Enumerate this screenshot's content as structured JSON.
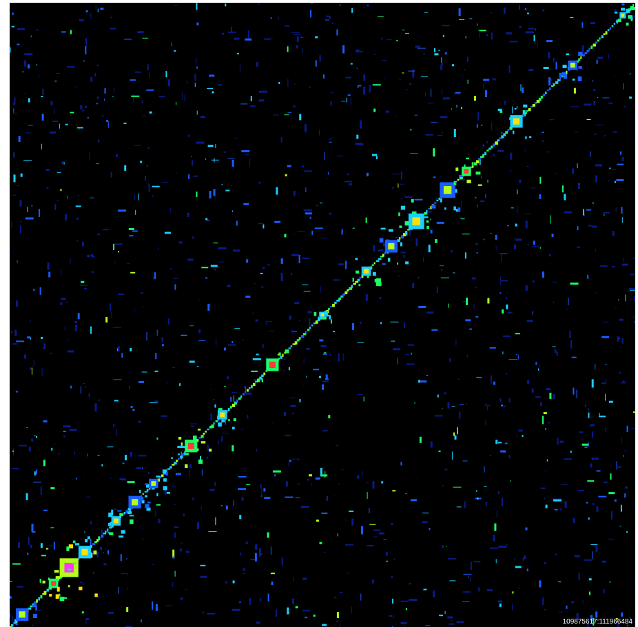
{
  "chart_data": {
    "type": "heatmap",
    "title": "",
    "xlabel": "",
    "ylabel": "",
    "background_color": "#000000",
    "colormap": [
      "#0a1a8a",
      "#1a5cff",
      "#1ad0ff",
      "#1aff66",
      "#b4ff1a",
      "#ffe000",
      "#ff3a3a",
      "#ff33ff"
    ],
    "axis_range_label": "109875617:111966484",
    "diagonal": "bottom-left to top-right",
    "domains_along_diagonal": [
      {
        "pos": 0.02,
        "size": 0.02,
        "level": 4
      },
      {
        "pos": 0.07,
        "size": 0.015,
        "level": 6
      },
      {
        "pos": 0.095,
        "size": 0.03,
        "level": 7
      },
      {
        "pos": 0.12,
        "size": 0.02,
        "level": 5
      },
      {
        "pos": 0.17,
        "size": 0.015,
        "level": 5
      },
      {
        "pos": 0.2,
        "size": 0.02,
        "level": 4
      },
      {
        "pos": 0.23,
        "size": 0.015,
        "level": 4
      },
      {
        "pos": 0.29,
        "size": 0.02,
        "level": 6
      },
      {
        "pos": 0.34,
        "size": 0.015,
        "level": 5
      },
      {
        "pos": 0.42,
        "size": 0.02,
        "level": 6
      },
      {
        "pos": 0.5,
        "size": 0.01,
        "level": 5
      },
      {
        "pos": 0.57,
        "size": 0.015,
        "level": 5
      },
      {
        "pos": 0.61,
        "size": 0.02,
        "level": 4
      },
      {
        "pos": 0.65,
        "size": 0.025,
        "level": 5
      },
      {
        "pos": 0.7,
        "size": 0.025,
        "level": 4
      },
      {
        "pos": 0.73,
        "size": 0.015,
        "level": 6
      },
      {
        "pos": 0.81,
        "size": 0.02,
        "level": 5
      },
      {
        "pos": 0.9,
        "size": 0.015,
        "level": 4
      },
      {
        "pos": 0.98,
        "size": 0.01,
        "level": 5
      }
    ]
  }
}
